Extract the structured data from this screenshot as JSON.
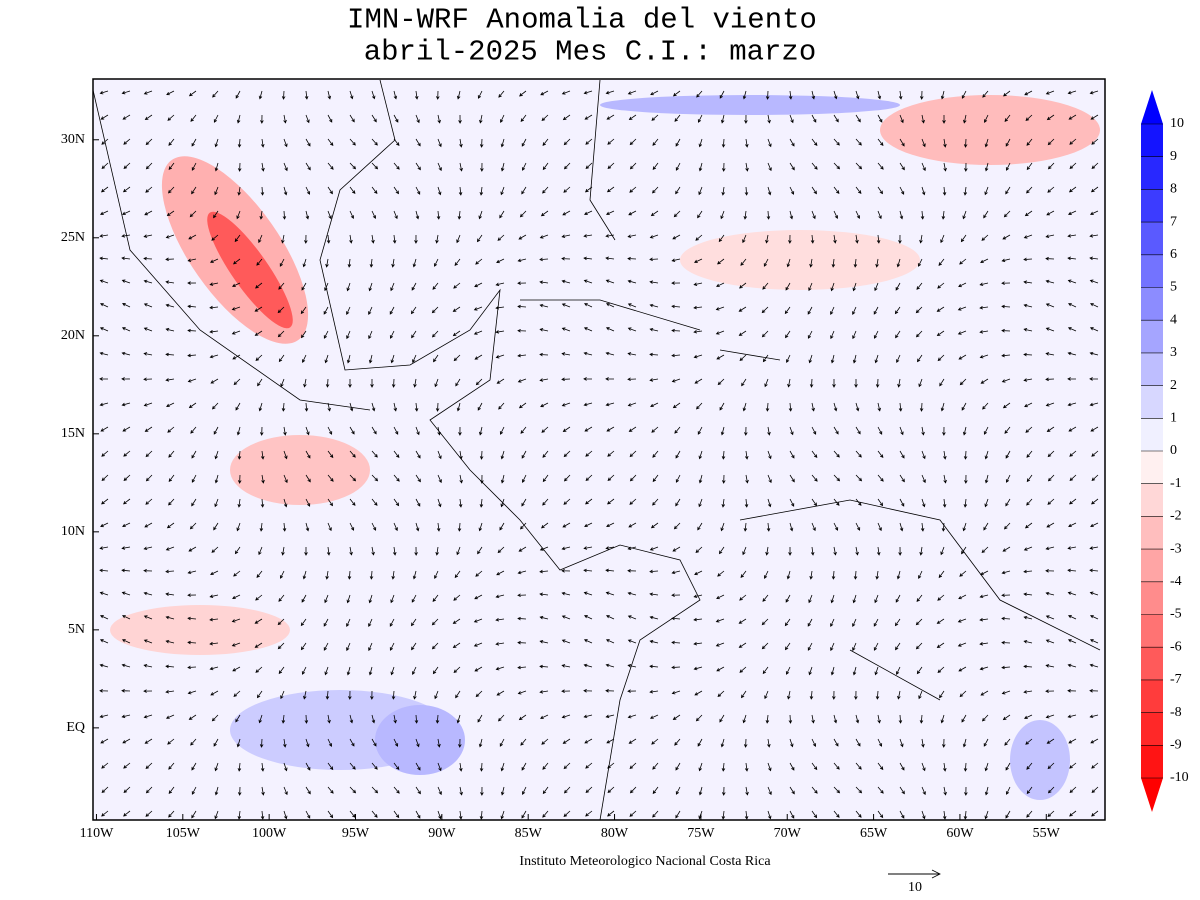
{
  "title": [
    "IMN-WRF Anomalia del viento",
    "abril-2025 Mes C.I.: marzo"
  ],
  "footer": "Instituto Meteorologico Nacional Costa Rica",
  "reference_vector": {
    "label": "10"
  },
  "map": {
    "xlim": [
      -110.2,
      -51.6
    ],
    "ylim": [
      -4.7,
      33.1
    ],
    "xticks": [
      {
        "value": -110,
        "label": "110W"
      },
      {
        "value": -105,
        "label": "105W"
      },
      {
        "value": -100,
        "label": "100W"
      },
      {
        "value": -95,
        "label": "95W"
      },
      {
        "value": -90,
        "label": "90W"
      },
      {
        "value": -85,
        "label": "85W"
      },
      {
        "value": -80,
        "label": "80W"
      },
      {
        "value": -75,
        "label": "75W"
      },
      {
        "value": -70,
        "label": "70W"
      },
      {
        "value": -65,
        "label": "65W"
      },
      {
        "value": -60,
        "label": "60W"
      },
      {
        "value": -55,
        "label": "55W"
      }
    ],
    "yticks": [
      {
        "value": 0,
        "label": "EQ"
      },
      {
        "value": 5,
        "label": "5N"
      },
      {
        "value": 10,
        "label": "10N"
      },
      {
        "value": 15,
        "label": "15N"
      },
      {
        "value": 20,
        "label": "20N"
      },
      {
        "value": 25,
        "label": "25N"
      },
      {
        "value": 30,
        "label": "30N"
      }
    ]
  },
  "colorbar": {
    "levels": [
      10,
      9,
      8,
      7,
      6,
      5,
      4,
      3,
      2,
      1,
      0,
      -1,
      -2,
      -3,
      -4,
      -5,
      -6,
      -7,
      -8,
      -9,
      -10
    ],
    "colors": [
      "#0000ff",
      "#1414ff",
      "#2828ff",
      "#3c3cff",
      "#5a5aff",
      "#7373ff",
      "#8c8cff",
      "#a5a5ff",
      "#bebeff",
      "#d7d7ff",
      "#f0f0ff",
      "#fff0f0",
      "#ffd7d7",
      "#ffbebe",
      "#ffa5a5",
      "#ff8c8c",
      "#ff7373",
      "#ff5a5a",
      "#ff3c3c",
      "#ff2828",
      "#ff1414",
      "#ff0000"
    ]
  }
}
